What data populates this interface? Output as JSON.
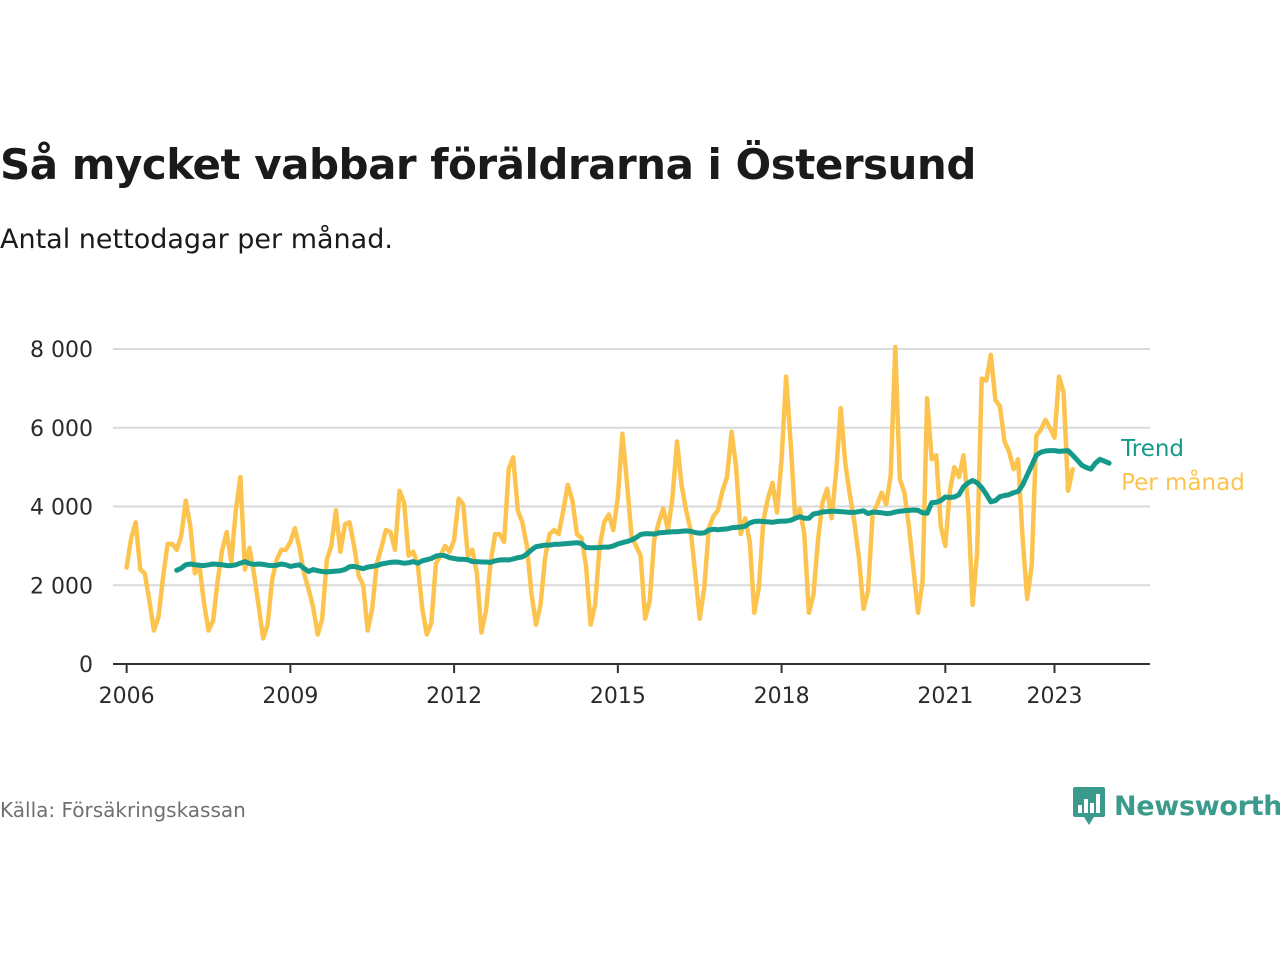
{
  "title": "Så mycket vabbar föräldrarna i Östersund",
  "subtitle": "Antal nettodagar per månad.",
  "source": "Källa: Försäkringskassan",
  "brand": "Newsworthy",
  "colors": {
    "monthly": "#fcc44f",
    "trend": "#14998a",
    "grid": "#d9d9d9",
    "axis": "#333333",
    "brand": "#3a9a8c"
  },
  "chart_data": {
    "type": "line",
    "title": "Så mycket vabbar föräldrarna i Östersund",
    "ylabel": "Antal nettodagar per månad.",
    "xlim": [
      2005.75,
      2024.75
    ],
    "ylim": [
      0,
      8000
    ],
    "y_ticks": [
      0,
      2000,
      4000,
      6000,
      8000
    ],
    "y_tick_labels": [
      "0",
      "2 000",
      "4 000",
      "6 000",
      "8 000"
    ],
    "x_ticks": [
      2006,
      2009,
      2012,
      2015,
      2018,
      2021,
      2023
    ],
    "x_tick_labels": [
      "2006",
      "2009",
      "2012",
      "2015",
      "2018",
      "2021",
      "2023"
    ],
    "grid": true,
    "legend": "end-of-line labels at right",
    "series": [
      {
        "name": "Per månad",
        "x_start": 2006.0,
        "step": 0.0833333,
        "values": [
          2450,
          3200,
          3600,
          2400,
          2300,
          1600,
          850,
          1200,
          2200,
          3050,
          3050,
          2900,
          3250,
          4150,
          3500,
          2300,
          2500,
          1550,
          850,
          1100,
          2100,
          2900,
          3350,
          2600,
          3900,
          4750,
          2400,
          2950,
          2300,
          1500,
          650,
          1000,
          2150,
          2650,
          2900,
          2900,
          3100,
          3450,
          2950,
          2300,
          1900,
          1450,
          750,
          1150,
          2650,
          3000,
          3900,
          2850,
          3550,
          3600,
          3000,
          2250,
          2000,
          850,
          1400,
          2550,
          2950,
          3400,
          3350,
          2900,
          4400,
          4100,
          2750,
          2850,
          2550,
          1400,
          750,
          1050,
          2550,
          2750,
          3000,
          2850,
          3150,
          4200,
          4050,
          2750,
          2900,
          2300,
          800,
          1350,
          2550,
          3300,
          3300,
          3100,
          4950,
          5250,
          3900,
          3600,
          3000,
          1800,
          1000,
          1500,
          2700,
          3300,
          3400,
          3300,
          3900,
          4550,
          4150,
          3300,
          3200,
          2500,
          1000,
          1500,
          3000,
          3600,
          3800,
          3400,
          4250,
          5850,
          4600,
          3250,
          3000,
          2750,
          1150,
          1600,
          3150,
          3600,
          3950,
          3400,
          4200,
          5650,
          4550,
          3900,
          3400,
          2300,
          1150,
          1950,
          3450,
          3750,
          3900,
          4400,
          4750,
          5900,
          5000,
          3300,
          3700,
          3100,
          1300,
          1950,
          3650,
          4200,
          4600,
          3850,
          5200,
          7300,
          5600,
          3700,
          3950,
          3300,
          1300,
          1750,
          3150,
          4100,
          4450,
          3700,
          4900,
          6500,
          5100,
          4300,
          3600,
          2700,
          1400,
          1850,
          3800,
          4050,
          4350,
          4050,
          4800,
          8050,
          4700,
          4350,
          3500,
          2400,
          1300,
          2100,
          6750,
          5200,
          5300,
          3500,
          3000,
          4400,
          5000,
          4750,
          5300,
          4050,
          1500,
          2850,
          7250,
          7200,
          7850,
          6700,
          6550,
          5650,
          5400,
          4950,
          5200,
          3200,
          1650,
          2500,
          5800,
          5950,
          6200,
          6000,
          5750,
          7300,
          6900,
          4400,
          4950
        ]
      },
      {
        "name": "Trend",
        "x_start": 2006.917,
        "step": 0.0833333,
        "values": [
          2380,
          2430,
          2520,
          2540,
          2520,
          2510,
          2500,
          2520,
          2540,
          2530,
          2520,
          2500,
          2500,
          2520,
          2560,
          2600,
          2550,
          2530,
          2540,
          2530,
          2510,
          2500,
          2510,
          2540,
          2520,
          2480,
          2500,
          2520,
          2430,
          2350,
          2400,
          2370,
          2350,
          2340,
          2350,
          2360,
          2370,
          2400,
          2470,
          2480,
          2450,
          2420,
          2460,
          2480,
          2500,
          2540,
          2560,
          2580,
          2590,
          2580,
          2560,
          2570,
          2600,
          2560,
          2620,
          2650,
          2680,
          2740,
          2760,
          2750,
          2700,
          2680,
          2660,
          2660,
          2650,
          2600,
          2600,
          2590,
          2590,
          2580,
          2620,
          2640,
          2650,
          2640,
          2670,
          2700,
          2720,
          2790,
          2900,
          2980,
          3000,
          3020,
          3020,
          3040,
          3040,
          3050,
          3060,
          3070,
          3080,
          3060,
          2960,
          2950,
          2950,
          2960,
          2970,
          2970,
          3000,
          3050,
          3080,
          3110,
          3150,
          3210,
          3290,
          3310,
          3310,
          3300,
          3330,
          3340,
          3350,
          3360,
          3360,
          3370,
          3380,
          3370,
          3340,
          3320,
          3330,
          3400,
          3420,
          3410,
          3420,
          3430,
          3460,
          3470,
          3480,
          3500,
          3580,
          3620,
          3630,
          3620,
          3610,
          3600,
          3620,
          3630,
          3630,
          3650,
          3700,
          3740,
          3700,
          3700,
          3810,
          3830,
          3860,
          3870,
          3880,
          3880,
          3870,
          3860,
          3850,
          3850,
          3870,
          3890,
          3820,
          3860,
          3850,
          3840,
          3820,
          3830,
          3860,
          3880,
          3890,
          3900,
          3910,
          3900,
          3840,
          3830,
          4100,
          4110,
          4150,
          4240,
          4230,
          4240,
          4300,
          4500,
          4600,
          4660,
          4600,
          4480,
          4310,
          4120,
          4150,
          4250,
          4280,
          4300,
          4350,
          4380,
          4550,
          4800,
          5050,
          5300,
          5380,
          5410,
          5420,
          5420,
          5400,
          5410,
          5420,
          5300,
          5180,
          5050,
          4990,
          4950,
          5100,
          5200,
          5150,
          5100
        ]
      }
    ]
  }
}
